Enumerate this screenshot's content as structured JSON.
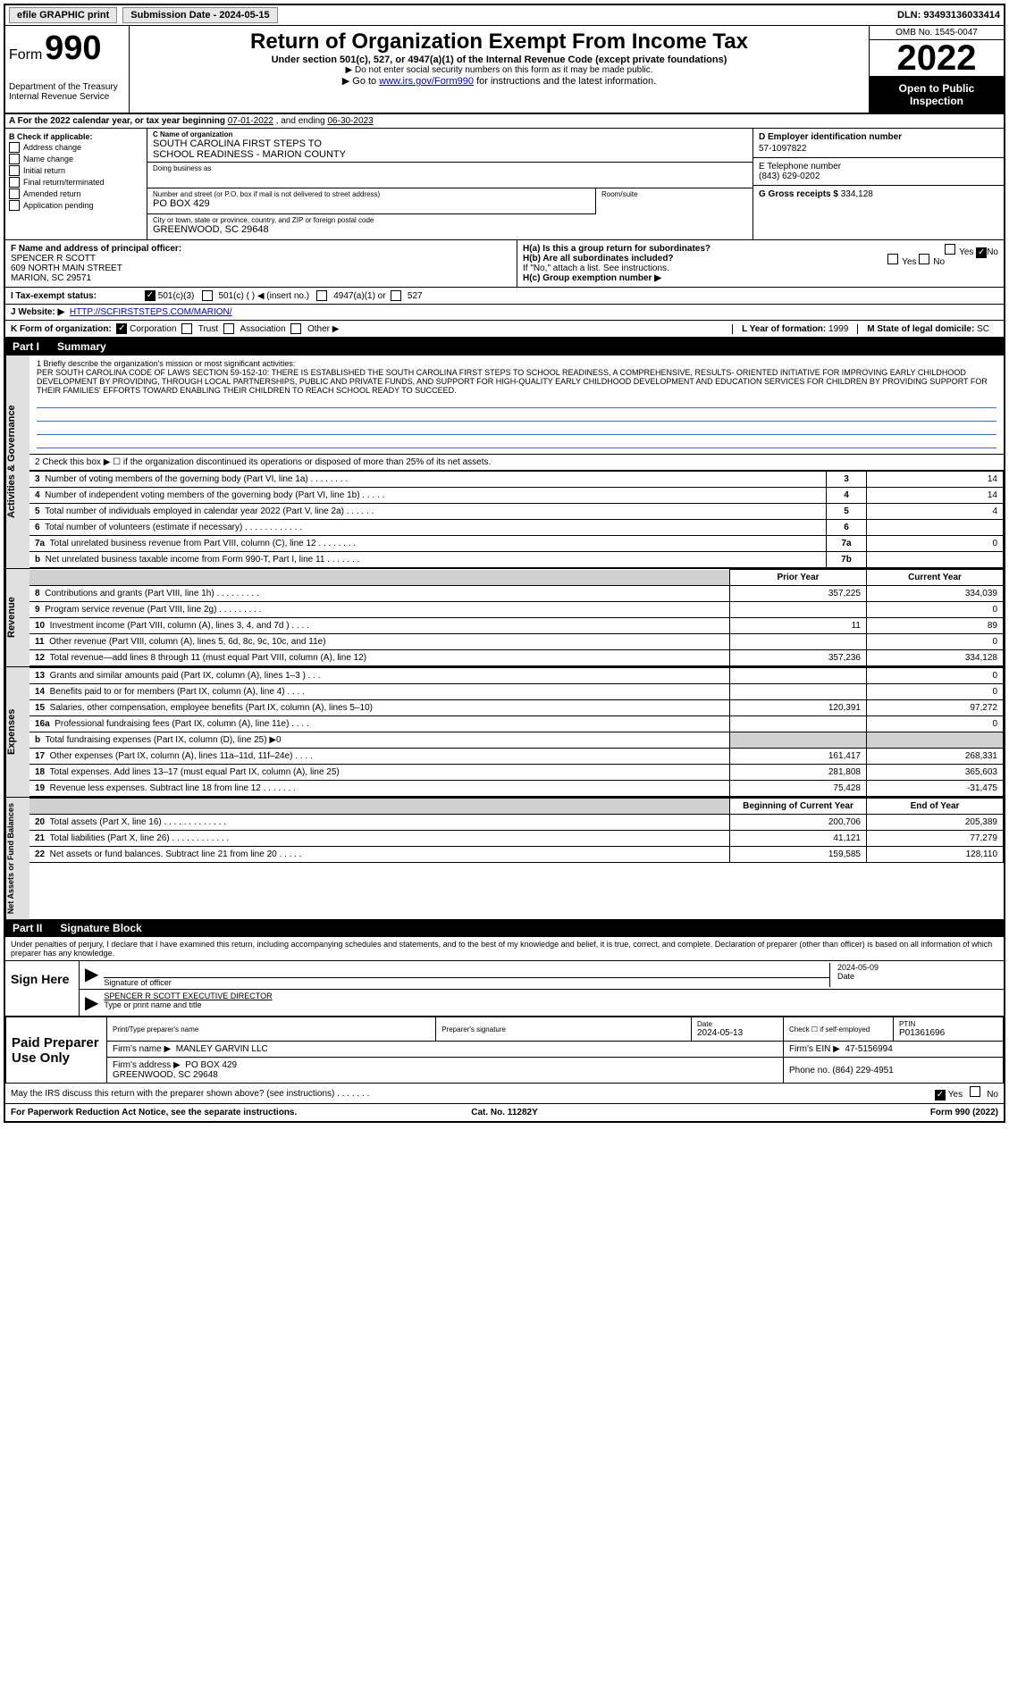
{
  "topbar": {
    "efile_label": "efile GRAPHIC print",
    "submission_label": "Submission Date - 2024-05-15",
    "dln": "DLN: 93493136033414"
  },
  "header": {
    "form_label": "Form",
    "form_number": "990",
    "title": "Return of Organization Exempt From Income Tax",
    "subtitle": "Under section 501(c), 527, or 4947(a)(1) of the Internal Revenue Code (except private foundations)",
    "ssn_note": "▶ Do not enter social security numbers on this form as it may be made public.",
    "goto": "▶ Go to ",
    "goto_link": "www.irs.gov/Form990",
    "goto_rest": " for instructions and the latest information.",
    "dept": "Department of the Treasury\nInternal Revenue Service",
    "omb": "OMB No. 1545-0047",
    "year": "2022",
    "open_public": "Open to Public Inspection"
  },
  "row_a": {
    "text": "A For the 2022 calendar year, or tax year beginning ",
    "begin": "07-01-2022",
    "mid": " , and ending ",
    "end": "06-30-2023"
  },
  "section_b": {
    "header": "B Check if applicable:",
    "options": [
      "Address change",
      "Name change",
      "Initial return",
      "Final return/terminated",
      "Amended return",
      "Application pending"
    ],
    "c_label": "C Name of organization",
    "c_name": "SOUTH CAROLINA FIRST STEPS TO\nSCHOOL READINESS - MARION COUNTY",
    "dba_label": "Doing business as",
    "dba_val": "",
    "addr_label": "Number and street (or P.O. box if mail is not delivered to street address)",
    "addr_val": "PO BOX 429",
    "room_label": "Room/suite",
    "room_val": "",
    "city_label": "City or town, state or province, country, and ZIP or foreign postal code",
    "city_val": "GREENWOOD, SC  29648",
    "d_label": "D Employer identification number",
    "d_val": "57-1097822",
    "e_label": "E Telephone number",
    "e_val": "(843) 629-0202",
    "g_label": "G Gross receipts $ ",
    "g_val": "334,128"
  },
  "section_fh": {
    "f_label": "F Name and address of principal officer:",
    "f_name": "SPENCER R SCOTT",
    "f_addr1": "609 NORTH MAIN STREET",
    "f_addr2": "MARION, SC  29571",
    "ha_label": "H(a) Is this a group return for subordinates?",
    "ha_yes": "Yes",
    "ha_no": "No",
    "hb_label": "H(b) Are all subordinates included?",
    "hb_yes": "Yes",
    "hb_no": "No",
    "hb_note": "If \"No,\" attach a list. See instructions.",
    "hc_label": "H(c) Group exemption number ▶"
  },
  "tax_status": {
    "label": "I   Tax-exempt status:",
    "opt1": "501(c)(3)",
    "opt2": "501(c) (   )  ◀ (insert no.)",
    "opt3": "4947(a)(1) or",
    "opt4": "527"
  },
  "website": {
    "label": "J   Website: ▶",
    "val": "HTTP://SCFIRSTSTEPS.COM/MARION/"
  },
  "row_k": {
    "label": "K Form of organization:",
    "opts": [
      "Corporation",
      "Trust",
      "Association",
      "Other ▶"
    ],
    "l_label": "L Year of formation: ",
    "l_val": "1999",
    "m_label": "M State of legal domicile: ",
    "m_val": "SC"
  },
  "part1": {
    "label": "Part I",
    "title": "Summary",
    "mission_label": "1   Briefly describe the organization's mission or most significant activities:",
    "mission": "PER SOUTH CAROLINA CODE OF LAWS SECTION 59-152-10: THERE IS ESTABLISHED THE SOUTH CAROLINA FIRST STEPS TO SCHOOL READINESS, A COMPREHENSIVE, RESULTS- ORIENTED INITIATIVE FOR IMPROVING EARLY CHILDHOOD DEVELOPMENT BY PROVIDING, THROUGH LOCAL PARTNERSHIPS, PUBLIC AND PRIVATE FUNDS, AND SUPPORT FOR HIGH-QUALITY EARLY CHILDHOOD DEVELOPMENT AND EDUCATION SERVICES FOR CHILDREN BY PROVIDING SUPPORT FOR THEIR FAMILIES' EFFORTS TOWARD ENABLING THEIR CHILDREN TO REACH SCHOOL READY TO SUCCEED.",
    "line2": "2   Check this box ▶ ☐ if the organization discontinued its operations or disposed of more than 25% of its net assets.",
    "rows_gov": [
      {
        "n": "3",
        "txt": "Number of voting members of the governing body (Part VI, line 1a)   .    .    .    .    .    .    .    .",
        "lbl": "3",
        "val": "14"
      },
      {
        "n": "4",
        "txt": "Number of independent voting members of the governing body (Part VI, line 1b)   .    .    .    .    .",
        "lbl": "4",
        "val": "14"
      },
      {
        "n": "5",
        "txt": "Total number of individuals employed in calendar year 2022 (Part V, line 2a)   .    .    .    .    .    .",
        "lbl": "5",
        "val": "4"
      },
      {
        "n": "6",
        "txt": "Total number of volunteers (estimate if necessary)   .    .    .    .    .    .    .    .    .    .    .    .",
        "lbl": "6",
        "val": ""
      },
      {
        "n": "7a",
        "txt": "Total unrelated business revenue from Part VIII, column (C), line 12   .    .    .    .    .    .    .    .",
        "lbl": "7a",
        "val": "0"
      },
      {
        "n": "b",
        "txt": "Net unrelated business taxable income from Form 990-T, Part I, line 11   .    .    .    .    .    .    .",
        "lbl": "7b",
        "val": ""
      }
    ],
    "col_head_prior": "Prior Year",
    "col_head_curr": "Current Year",
    "rows_rev": [
      {
        "n": "8",
        "txt": "Contributions and grants (Part VIII, line 1h)   .    .    .    .    .    .    .    .    .",
        "p": "357,225",
        "c": "334,039"
      },
      {
        "n": "9",
        "txt": "Program service revenue (Part VIII, line 2g)   .    .    .    .    .    .    .    .    .",
        "p": "",
        "c": "0"
      },
      {
        "n": "10",
        "txt": "Investment income (Part VIII, column (A), lines 3, 4, and 7d )   .    .    .    .",
        "p": "11",
        "c": "89"
      },
      {
        "n": "11",
        "txt": "Other revenue (Part VIII, column (A), lines 5, 6d, 8c, 9c, 10c, and 11e)",
        "p": "",
        "c": "0"
      },
      {
        "n": "12",
        "txt": "Total revenue—add lines 8 through 11 (must equal Part VIII, column (A), line 12)",
        "p": "357,236",
        "c": "334,128"
      }
    ],
    "rows_exp": [
      {
        "n": "13",
        "txt": "Grants and similar amounts paid (Part IX, column (A), lines 1–3 )   .    .    .",
        "p": "",
        "c": "0"
      },
      {
        "n": "14",
        "txt": "Benefits paid to or for members (Part IX, column (A), line 4)   .    .    .    .",
        "p": "",
        "c": "0"
      },
      {
        "n": "15",
        "txt": "Salaries, other compensation, employee benefits (Part IX, column (A), lines 5–10)",
        "p": "120,391",
        "c": "97,272"
      },
      {
        "n": "16a",
        "txt": "Professional fundraising fees (Part IX, column (A), line 11e)   .    .    .    .",
        "p": "",
        "c": "0"
      },
      {
        "n": "b",
        "txt": "Total fundraising expenses (Part IX, column (D), line 25) ▶0",
        "p": "shade",
        "c": "shade"
      },
      {
        "n": "17",
        "txt": "Other expenses (Part IX, column (A), lines 11a–11d, 11f–24e)   .    .    .    .",
        "p": "161,417",
        "c": "268,331"
      },
      {
        "n": "18",
        "txt": "Total expenses. Add lines 13–17 (must equal Part IX, column (A), line 25)",
        "p": "281,808",
        "c": "365,603"
      },
      {
        "n": "19",
        "txt": "Revenue less expenses. Subtract line 18 from line 12   .    .    .    .    .    .    .",
        "p": "75,428",
        "c": "-31,475"
      }
    ],
    "col_head_boy": "Beginning of Current Year",
    "col_head_eoy": "End of Year",
    "rows_net": [
      {
        "n": "20",
        "txt": "Total assets (Part X, line 16)   .    .    .    .    .    .    .    .    .    .    .    .    .",
        "p": "200,706",
        "c": "205,389"
      },
      {
        "n": "21",
        "txt": "Total liabilities (Part X, line 26)   .    .    .    .    .    .    .    .    .    .    .    .",
        "p": "41,121",
        "c": "77,279"
      },
      {
        "n": "22",
        "txt": "Net assets or fund balances. Subtract line 21 from line 20   .    .    .    .    .",
        "p": "159,585",
        "c": "128,110"
      }
    ],
    "side_gov": "Activities & Governance",
    "side_rev": "Revenue",
    "side_exp": "Expenses",
    "side_net": "Net Assets or Fund Balances"
  },
  "part2": {
    "label": "Part II",
    "title": "Signature Block",
    "perjury": "Under penalties of perjury, I declare that I have examined this return, including accompanying schedules and statements, and to the best of my knowledge and belief, it is true, correct, and complete. Declaration of preparer (other than officer) is based on all information of which preparer has any knowledge.",
    "sign_here": "Sign Here",
    "sig_officer_label": "Signature of officer",
    "sig_date": "2024-05-09",
    "sig_date_label": "Date",
    "sig_name": "SPENCER R SCOTT  EXECUTIVE DIRECTOR",
    "sig_name_label": "Type or print name and title",
    "paid": "Paid Preparer Use Only",
    "prep_name_label": "Print/Type preparer's name",
    "prep_sig_label": "Preparer's signature",
    "prep_date_label": "Date",
    "prep_date": "2024-05-13",
    "check_se": "Check ☐ if self-employed",
    "ptin_label": "PTIN",
    "ptin": "P01361696",
    "firm_name_label": "Firm's name    ▶",
    "firm_name": "MANLEY GARVIN LLC",
    "firm_ein_label": "Firm's EIN ▶",
    "firm_ein": "47-5156994",
    "firm_addr_label": "Firm's address ▶",
    "firm_addr": "PO BOX 429\nGREENWOOD, SC  29648",
    "firm_phone_label": "Phone no. ",
    "firm_phone": "(864) 229-4951",
    "discuss": "May the IRS discuss this return with the preparer shown above? (see instructions)   .    .    .    .    .    .    .",
    "discuss_yes": "Yes",
    "discuss_no": "No"
  },
  "footer": {
    "pra": "For Paperwork Reduction Act Notice, see the separate instructions.",
    "cat": "Cat. No. 11282Y",
    "form": "Form 990 (2022)"
  }
}
